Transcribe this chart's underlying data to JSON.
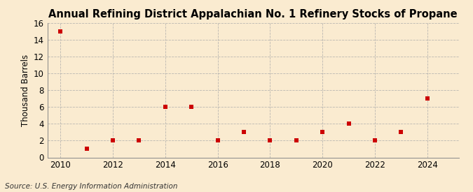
{
  "title": "Annual Refining District Appalachian No. 1 Refinery Stocks of Propane",
  "ylabel": "Thousand Barrels",
  "source": "Source: U.S. Energy Information Administration",
  "background_color": "#faebd0",
  "plot_bg_color": "#faebd0",
  "years": [
    2010,
    2011,
    2012,
    2013,
    2014,
    2015,
    2016,
    2017,
    2018,
    2019,
    2020,
    2021,
    2022,
    2023,
    2024
  ],
  "values": [
    15,
    1,
    2,
    2,
    6,
    6,
    2,
    3,
    2,
    2,
    3,
    4,
    2,
    3,
    7
  ],
  "marker_color": "#cc0000",
  "marker": "s",
  "marker_size": 5,
  "xlim": [
    2009.5,
    2025.2
  ],
  "ylim": [
    0,
    16
  ],
  "yticks": [
    0,
    2,
    4,
    6,
    8,
    10,
    12,
    14,
    16
  ],
  "xticks": [
    2010,
    2012,
    2014,
    2016,
    2018,
    2020,
    2022,
    2024
  ],
  "grid_color": "#aaaaaa",
  "grid_style": "--",
  "grid_alpha": 0.8,
  "title_fontsize": 10.5,
  "axis_label_fontsize": 8.5,
  "tick_fontsize": 8.5,
  "source_fontsize": 7.5
}
